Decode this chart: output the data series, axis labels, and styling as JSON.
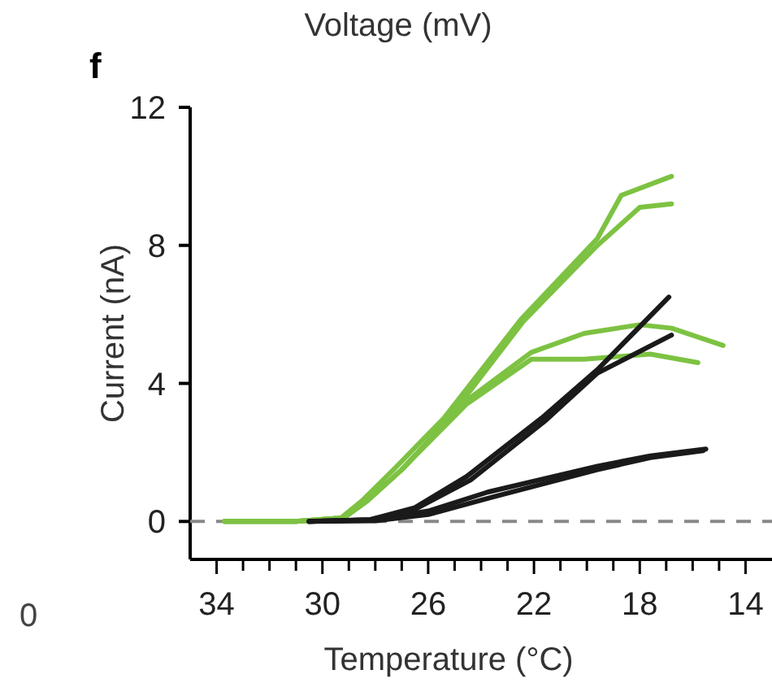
{
  "chart_data": {
    "type": "line",
    "title": "Voltage (mV)",
    "xlabel": "Temperature (°C)",
    "ylabel": "Current (nA)",
    "annotations": [
      "f",
      "0"
    ],
    "xlim": [
      35,
      13
    ],
    "ylim": [
      -1.1,
      12
    ],
    "xticks": [
      34,
      {
        "value": 33,
        "label": null
      },
      {
        "value": 32,
        "label": null
      },
      {
        "value": 31,
        "label": null
      },
      30,
      {
        "value": 29,
        "label": null
      },
      {
        "value": 28,
        "label": null
      },
      {
        "value": 27,
        "label": null
      },
      26,
      {
        "value": 25,
        "label": null
      },
      {
        "value": 24,
        "label": null
      },
      {
        "value": 23,
        "label": null
      },
      22,
      {
        "value": 21,
        "label": null
      },
      {
        "value": 20,
        "label": null
      },
      {
        "value": 19,
        "label": null
      },
      18,
      {
        "value": 17,
        "label": null
      },
      {
        "value": 16,
        "label": null
      },
      {
        "value": 15,
        "label": null
      },
      14
    ],
    "yticks": [
      0,
      4,
      8,
      12
    ],
    "line_style": "solid",
    "ref_lines": [
      {
        "axis": "y",
        "value": 0,
        "label": null,
        "color": "#888888",
        "line_style": "dashed"
      }
    ],
    "series": [
      {
        "color": "#7dc242",
        "x": [
          33.7,
          31,
          29.3,
          28.5,
          27.25,
          25.4,
          22.5,
          19.6,
          18.7,
          16.8
        ],
        "values": [
          0,
          0,
          0.1,
          0.6,
          1.55,
          3.0,
          5.85,
          8.2,
          9.45,
          10.0
        ]
      },
      {
        "color": "#7dc242",
        "x": [
          33.7,
          31,
          29.2,
          28.3,
          27.0,
          25.2,
          22.4,
          19.6,
          18.0,
          16.8
        ],
        "values": [
          0,
          0,
          0.1,
          0.6,
          1.5,
          3.0,
          5.8,
          8.0,
          9.1,
          9.2
        ]
      },
      {
        "color": "#7dc242",
        "x": [
          33.7,
          31,
          29.2,
          28.3,
          27.0,
          24.55,
          22.1,
          20.1,
          18.0,
          16.8,
          14.85
        ],
        "values": [
          0,
          0,
          0.1,
          0.6,
          1.5,
          3.5,
          4.9,
          5.45,
          5.7,
          5.6,
          5.1
        ]
      },
      {
        "color": "#7dc242",
        "x": [
          33.7,
          31,
          29.2,
          28.3,
          27.0,
          24.55,
          22.1,
          20.1,
          17.6,
          15.8
        ],
        "values": [
          0,
          0,
          0.1,
          0.6,
          1.5,
          3.4,
          4.7,
          4.7,
          4.85,
          4.6
        ]
      },
      {
        "color": "#1a1a1a",
        "x": [
          30.5,
          28.2,
          26.5,
          24.55,
          21.7,
          19.6,
          16.9
        ],
        "values": [
          0,
          0.05,
          0.4,
          1.3,
          3.0,
          4.4,
          6.5
        ]
      },
      {
        "color": "#1a1a1a",
        "x": [
          30.5,
          28.2,
          26.5,
          24.4,
          21.6,
          19.6,
          16.8
        ],
        "values": [
          0,
          0.05,
          0.35,
          1.2,
          2.9,
          4.3,
          5.4
        ]
      },
      {
        "color": "#1a1a1a",
        "x": [
          30.5,
          28.0,
          26.0,
          23.75,
          19.6,
          17.6,
          15.5
        ],
        "values": [
          0,
          0.05,
          0.3,
          0.85,
          1.6,
          1.9,
          2.1
        ]
      },
      {
        "color": "#1a1a1a",
        "x": [
          30.5,
          28.0,
          26.0,
          23.6,
          19.6,
          17.6,
          15.6
        ],
        "values": [
          0,
          0.02,
          0.2,
          0.7,
          1.5,
          1.85,
          2.05
        ]
      }
    ]
  }
}
